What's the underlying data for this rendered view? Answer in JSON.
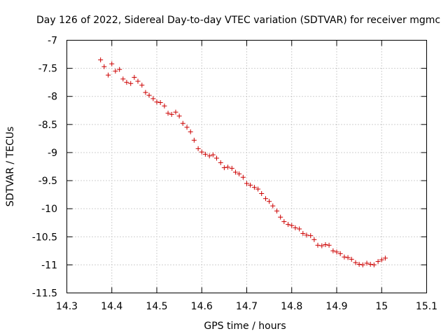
{
  "chart_data": {
    "type": "scatter",
    "title": "Day 126 of 2022, Sidereal Day-to-day VTEC variation (SDTVAR) for receiver mgmc",
    "xlabel": "GPS time / hours",
    "ylabel": "SDTVAR / TECUs",
    "xlim": [
      14.3,
      15.1
    ],
    "ylim": [
      -11.5,
      -7
    ],
    "x_ticks": [
      14.3,
      14.4,
      14.5,
      14.6,
      14.7,
      14.8,
      14.9,
      15,
      15.1
    ],
    "x_tick_labels": [
      "14.3",
      "14.4",
      "14.5",
      "14.6",
      "14.7",
      "14.8",
      "14.9",
      "15",
      "15.1"
    ],
    "y_ticks": [
      -7,
      -7.5,
      -8,
      -8.5,
      -9,
      -9.5,
      -10,
      -10.5,
      -11,
      -11.5
    ],
    "y_tick_labels": [
      "-7",
      "-7.5",
      "-8",
      "-8.5",
      "-9",
      "-9.5",
      "-10",
      "-10.5",
      "-11",
      "-11.5"
    ],
    "grid": true,
    "marker": "+",
    "color": "#cc0000",
    "series": [
      {
        "name": "SDTVAR",
        "x": [
          14.375,
          14.383,
          14.392,
          14.4,
          14.408,
          14.417,
          14.425,
          14.433,
          14.442,
          14.45,
          14.458,
          14.467,
          14.475,
          14.483,
          14.492,
          14.5,
          14.508,
          14.517,
          14.525,
          14.533,
          14.542,
          14.55,
          14.558,
          14.567,
          14.575,
          14.583,
          14.592,
          14.6,
          14.608,
          14.617,
          14.625,
          14.633,
          14.642,
          14.65,
          14.658,
          14.667,
          14.675,
          14.683,
          14.692,
          14.7,
          14.708,
          14.717,
          14.725,
          14.733,
          14.742,
          14.75,
          14.758,
          14.767,
          14.775,
          14.783,
          14.792,
          14.8,
          14.808,
          14.817,
          14.825,
          14.833,
          14.842,
          14.85,
          14.858,
          14.867,
          14.875,
          14.883,
          14.892,
          14.9,
          14.908,
          14.917,
          14.925,
          14.933,
          14.942,
          14.95,
          14.958,
          14.967,
          14.975,
          14.983,
          14.992,
          15.0,
          15.008
        ],
        "y": [
          -7.35,
          -7.47,
          -7.62,
          -7.42,
          -7.55,
          -7.52,
          -7.69,
          -7.75,
          -7.77,
          -7.66,
          -7.73,
          -7.8,
          -7.93,
          -7.98,
          -8.04,
          -8.1,
          -8.11,
          -8.17,
          -8.3,
          -8.32,
          -8.28,
          -8.35,
          -8.48,
          -8.55,
          -8.63,
          -8.78,
          -8.93,
          -8.99,
          -9.03,
          -9.06,
          -9.04,
          -9.1,
          -9.18,
          -9.27,
          -9.26,
          -9.28,
          -9.35,
          -9.38,
          -9.44,
          -9.55,
          -9.58,
          -9.62,
          -9.65,
          -9.73,
          -9.82,
          -9.87,
          -9.95,
          -10.04,
          -10.15,
          -10.23,
          -10.28,
          -10.3,
          -10.34,
          -10.36,
          -10.44,
          -10.47,
          -10.48,
          -10.55,
          -10.65,
          -10.66,
          -10.64,
          -10.65,
          -10.75,
          -10.77,
          -10.8,
          -10.86,
          -10.87,
          -10.9,
          -10.96,
          -10.99,
          -11.0,
          -10.97,
          -10.99,
          -11.0,
          -10.94,
          -10.91,
          -10.88
        ]
      }
    ]
  }
}
